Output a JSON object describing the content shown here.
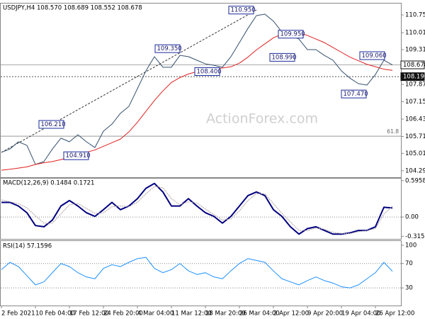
{
  "chart_data": [
    {
      "type": "line",
      "title": "USDJPY,H4  108.570 108.689 108.552 108.678",
      "watermark": "ActionForex.com",
      "categories": [
        "2 Feb 2021",
        null,
        null,
        null,
        "10 Feb 04:00",
        null,
        null,
        null,
        "17 Feb 12:00",
        null,
        null,
        null,
        "24 Feb 20:00",
        null,
        null,
        null,
        "4 Mar 04:00",
        null,
        null,
        null,
        "11 Mar 12:00",
        null,
        null,
        null,
        "18 Mar 20:00",
        null,
        null,
        null,
        "26 Mar 04:00",
        null,
        null,
        null,
        "2 Apr 12:00",
        null,
        null,
        null,
        "9 Apr 20:00",
        null,
        null,
        null,
        "19 Apr 04:00",
        null,
        null,
        null,
        "26 Apr 12:00",
        null,
        null
      ],
      "series": [
        {
          "color": "#34506e",
          "values": [
            105.05,
            105.19,
            105.49,
            105.34,
            104.55,
            104.67,
            105.19,
            105.64,
            105.49,
            105.78,
            105.49,
            105.25,
            105.93,
            106.22,
            106.67,
            106.96,
            107.69,
            108.43,
            109.02,
            108.58,
            108.58,
            109.07,
            109.02,
            108.87,
            108.72,
            108.66,
            108.58,
            109.02,
            109.6,
            110.19,
            110.72,
            110.78,
            110.49,
            110.04,
            109.9,
            109.75,
            109.31,
            109.31,
            109.07,
            108.87,
            108.43,
            108.13,
            107.9,
            107.84,
            108.28,
            108.87,
            108.678
          ]
        },
        {
          "color": "#e02020",
          "values": [
            104.31,
            104.35,
            104.4,
            104.45,
            104.55,
            104.62,
            104.67,
            104.75,
            104.85,
            104.95,
            105.05,
            105.15,
            105.3,
            105.45,
            105.6,
            105.9,
            106.3,
            106.75,
            107.2,
            107.6,
            107.95,
            108.15,
            108.3,
            108.4,
            108.45,
            108.5,
            108.55,
            108.6,
            108.75,
            109.0,
            109.3,
            109.55,
            109.8,
            109.95,
            110.0,
            110.0,
            109.9,
            109.75,
            109.6,
            109.4,
            109.2,
            109.0,
            108.85,
            108.7,
            108.6,
            108.5,
            108.45
          ]
        }
      ],
      "ylim": [
        104.02,
        111.25
      ],
      "yticks": [
        {
          "value": 110.75,
          "label": "110.750"
        },
        {
          "value": 110.01,
          "label": "110.010"
        },
        {
          "value": 109.31,
          "label": "109.310"
        },
        {
          "value": 107.87,
          "label": "107.870"
        },
        {
          "value": 107.15,
          "label": "107.150"
        },
        {
          "value": 106.43,
          "label": "106.430"
        },
        {
          "value": 105.71,
          "label": "105.710"
        },
        {
          "value": 105.01,
          "label": "105.010"
        },
        {
          "value": 104.29,
          "label": "104.290"
        }
      ],
      "trendline": [
        105.05,
        110.95
      ],
      "annotations": [
        {
          "value": 110.95,
          "label": "110.950"
        },
        {
          "value": 109.35,
          "label": "109.350"
        },
        {
          "value": 108.4,
          "label": "108.400"
        },
        {
          "value": 106.21,
          "label": "106.210"
        },
        {
          "value": 104.91,
          "label": "104.910"
        },
        {
          "value": 109.95,
          "label": "109.950"
        },
        {
          "value": 108.99,
          "label": "108.990"
        },
        {
          "value": 109.06,
          "label": "109.060"
        },
        {
          "value": 107.47,
          "label": "107.470"
        }
      ],
      "price_lines": [
        {
          "value": 108.678,
          "label": "108.678"
        },
        {
          "value": 108.19,
          "label": "108.190"
        }
      ],
      "fib_level": {
        "value": 105.72,
        "label": "61.8"
      }
    },
    {
      "type": "line",
      "title": "MACD(12,26,9) 0.1484 0.1721",
      "dotted_grid": true,
      "series": [
        {
          "color": "#000080",
          "values": [
            0.24,
            0.24,
            0.18,
            0.07,
            -0.14,
            -0.16,
            -0.05,
            0.18,
            0.27,
            0.18,
            0.07,
            0.01,
            0.12,
            0.24,
            0.12,
            0.18,
            0.3,
            0.47,
            0.55,
            0.41,
            0.18,
            0.18,
            0.3,
            0.18,
            0.07,
            0.01,
            -0.1,
            0.01,
            0.18,
            0.35,
            0.41,
            0.35,
            0.12,
            0.01,
            -0.16,
            -0.28,
            -0.19,
            -0.16,
            -0.22,
            -0.28,
            -0.28,
            -0.26,
            -0.22,
            -0.22,
            -0.16,
            0.16,
            0.1484
          ]
        },
        {
          "color": "#b0a0a0",
          "values": [
            0.28,
            0.25,
            0.22,
            0.15,
            0.02,
            -0.1,
            -0.1,
            0.05,
            0.2,
            0.22,
            0.14,
            0.06,
            0.07,
            0.17,
            0.18,
            0.17,
            0.24,
            0.38,
            0.5,
            0.48,
            0.3,
            0.2,
            0.25,
            0.23,
            0.13,
            0.04,
            -0.05,
            -0.03,
            0.1,
            0.27,
            0.38,
            0.38,
            0.22,
            0.06,
            -0.08,
            -0.22,
            -0.22,
            -0.18,
            -0.2,
            -0.25,
            -0.27,
            -0.27,
            -0.24,
            -0.22,
            -0.19,
            0.05,
            0.1721
          ]
        }
      ],
      "ylim": [
        -0.37,
        0.64
      ],
      "yticks": [
        0.5958,
        {
          "value": 0,
          "label": "0.00"
        },
        -0.3158
      ]
    },
    {
      "type": "line",
      "title": "RSI(14) 57.1596",
      "dotted_grid": true,
      "series": [
        {
          "color": "#1e90ff",
          "values": [
            60,
            72,
            65,
            50,
            35,
            40,
            55,
            70,
            65,
            55,
            48,
            45,
            62,
            68,
            65,
            72,
            78,
            80,
            62,
            55,
            60,
            70,
            58,
            52,
            55,
            48,
            45,
            58,
            70,
            78,
            75,
            72,
            58,
            45,
            40,
            35,
            42,
            48,
            42,
            38,
            32,
            30,
            35,
            45,
            55,
            72,
            57.1596
          ]
        }
      ],
      "ylim": [
        0,
        108
      ],
      "yticks": [
        100,
        70,
        30
      ]
    }
  ]
}
